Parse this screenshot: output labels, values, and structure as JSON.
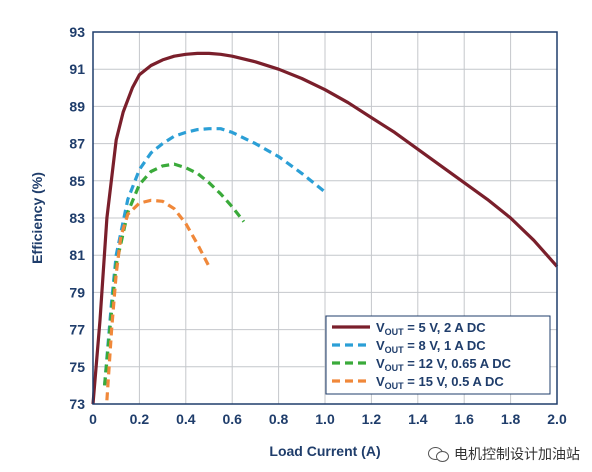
{
  "chart_data": {
    "type": "line",
    "title": "",
    "xlabel": "Load Current (A)",
    "ylabel": "Efficiency (%)",
    "xlim": [
      0,
      2.0
    ],
    "ylim": [
      73,
      93
    ],
    "x_ticks": [
      "0",
      "0.2",
      "0.4",
      "0.6",
      "0.8",
      "1.0",
      "1.2",
      "1.4",
      "1.6",
      "1.8",
      "2.0"
    ],
    "y_ticks": [
      "93",
      "91",
      "89",
      "87",
      "85",
      "83",
      "81",
      "79",
      "77",
      "75",
      "73"
    ],
    "grid": true,
    "legend_position": "bottom-right",
    "series": [
      {
        "name": "VOUT = 5 V, 2 A DC",
        "name_parts": [
          "V",
          "OUT",
          " = 5 V, 2 A DC"
        ],
        "color": "#7a1f2b",
        "dash": "solid",
        "x": [
          0.0,
          0.03,
          0.06,
          0.1,
          0.13,
          0.17,
          0.2,
          0.25,
          0.3,
          0.35,
          0.4,
          0.45,
          0.5,
          0.55,
          0.6,
          0.7,
          0.8,
          0.9,
          1.0,
          1.1,
          1.2,
          1.3,
          1.4,
          1.5,
          1.6,
          1.7,
          1.8,
          1.9,
          2.0
        ],
        "y": [
          73.0,
          77.5,
          83.0,
          87.2,
          88.7,
          90.0,
          90.7,
          91.2,
          91.5,
          91.7,
          91.8,
          91.85,
          91.85,
          91.8,
          91.7,
          91.4,
          91.0,
          90.5,
          89.9,
          89.2,
          88.4,
          87.6,
          86.7,
          85.8,
          84.9,
          84.0,
          83.0,
          81.8,
          80.4
        ]
      },
      {
        "name": "VOUT = 8 V, 1 A DC",
        "name_parts": [
          "V",
          "OUT",
          " = 8 V, 1 A DC"
        ],
        "color": "#2b9fd6",
        "dash": "dashed",
        "x": [
          0.05,
          0.08,
          0.1,
          0.15,
          0.2,
          0.25,
          0.3,
          0.35,
          0.4,
          0.45,
          0.5,
          0.55,
          0.6,
          0.7,
          0.8,
          0.9,
          1.0
        ],
        "y": [
          74.0,
          78.5,
          81.0,
          84.0,
          85.6,
          86.5,
          87.0,
          87.4,
          87.6,
          87.75,
          87.8,
          87.8,
          87.6,
          87.0,
          86.3,
          85.4,
          84.4
        ]
      },
      {
        "name": "VOUT = 12 V, 0.65 A DC",
        "name_parts": [
          "V",
          "OUT",
          " = 12 V, 0.65 A DC"
        ],
        "color": "#3aaa3a",
        "dash": "dashed",
        "x": [
          0.05,
          0.08,
          0.1,
          0.15,
          0.2,
          0.25,
          0.3,
          0.35,
          0.4,
          0.45,
          0.5,
          0.55,
          0.6,
          0.65
        ],
        "y": [
          74.0,
          78.0,
          80.5,
          83.3,
          84.8,
          85.5,
          85.8,
          85.9,
          85.7,
          85.4,
          84.9,
          84.3,
          83.6,
          82.8
        ]
      },
      {
        "name": "VOUT = 15 V, 0.5 A DC",
        "name_parts": [
          "V",
          "OUT",
          " = 15 V, 0.5 A DC"
        ],
        "color": "#f0883a",
        "dash": "dashed",
        "x": [
          0.06,
          0.08,
          0.1,
          0.12,
          0.15,
          0.2,
          0.25,
          0.3,
          0.35,
          0.4,
          0.45,
          0.5
        ],
        "y": [
          73.2,
          77.0,
          80.0,
          82.0,
          83.2,
          83.8,
          83.95,
          83.9,
          83.5,
          82.7,
          81.6,
          80.4
        ]
      }
    ]
  },
  "watermark": {
    "text": "电机控制设计加油站"
  }
}
